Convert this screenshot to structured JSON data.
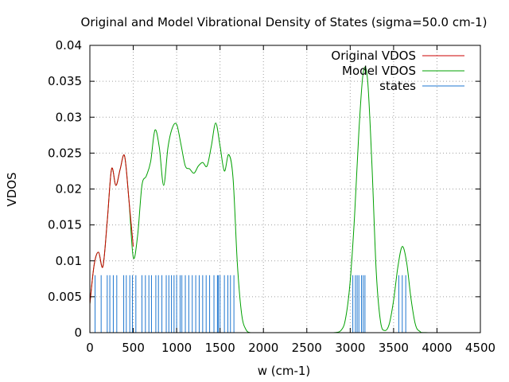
{
  "chart_data": {
    "type": "line",
    "title": "Original and Model Vibrational Density of States (sigma=50.0 cm-1)",
    "xlabel": "w (cm-1)",
    "ylabel": "VDOS",
    "xlim": [
      0,
      4500
    ],
    "ylim": [
      0,
      0.04
    ],
    "xticks": [
      "0",
      "500",
      "1000",
      "1500",
      "2000",
      "2500",
      "3000",
      "3500",
      "4000",
      "4500"
    ],
    "yticks": [
      "0",
      "0.005",
      "0.01",
      "0.015",
      "0.02",
      "0.025",
      "0.03",
      "0.035",
      "0.04"
    ],
    "grid": true,
    "legend_position": "top-right",
    "series": [
      {
        "name": "Original VDOS",
        "color": "#cc0000",
        "x": [
          0,
          50,
          100,
          150,
          200,
          250,
          300,
          350,
          400,
          450,
          500
        ],
        "y": [
          0.004,
          0.0095,
          0.0112,
          0.0092,
          0.0155,
          0.0228,
          0.0205,
          0.0228,
          0.0246,
          0.0185,
          0.012
        ]
      },
      {
        "name": "Model VDOS",
        "color": "#00a000",
        "x": [
          0,
          50,
          100,
          150,
          200,
          250,
          300,
          350,
          400,
          450,
          500,
          550,
          600,
          650,
          700,
          750,
          800,
          850,
          900,
          950,
          1000,
          1050,
          1100,
          1150,
          1200,
          1250,
          1300,
          1350,
          1400,
          1450,
          1500,
          1550,
          1600,
          1650,
          1700,
          1750,
          1800,
          1850,
          1900,
          2000,
          2500,
          2800,
          2900,
          2950,
          3000,
          3050,
          3100,
          3150,
          3200,
          3250,
          3300,
          3350,
          3400,
          3450,
          3500,
          3550,
          3600,
          3650,
          3700,
          3750,
          3800,
          3900,
          4500
        ],
        "y": [
          0.004,
          0.0095,
          0.0112,
          0.0092,
          0.0155,
          0.0228,
          0.0205,
          0.0228,
          0.0246,
          0.0185,
          0.0105,
          0.0135,
          0.0205,
          0.0218,
          0.0238,
          0.0282,
          0.0258,
          0.0205,
          0.0258,
          0.0285,
          0.029,
          0.0262,
          0.0232,
          0.0228,
          0.0222,
          0.0232,
          0.0237,
          0.0232,
          0.026,
          0.0292,
          0.026,
          0.0225,
          0.0248,
          0.0215,
          0.0095,
          0.0025,
          0.0004,
          0.0,
          0.0,
          0.0,
          0.0,
          0.0,
          0.0004,
          0.0022,
          0.0072,
          0.0162,
          0.028,
          0.0362,
          0.0352,
          0.0235,
          0.0085,
          0.0015,
          0.0003,
          0.0012,
          0.0045,
          0.0092,
          0.012,
          0.0098,
          0.0048,
          0.0012,
          0.0002,
          0.0,
          0.0
        ]
      },
      {
        "name": "states",
        "color": "#1f77d0",
        "impulse_height": 0.008,
        "x": [
          60,
          130,
          200,
          230,
          270,
          310,
          390,
          420,
          460,
          490,
          530,
          600,
          640,
          680,
          710,
          760,
          790,
          830,
          880,
          910,
          940,
          970,
          1000,
          1040,
          1060,
          1100,
          1140,
          1180,
          1220,
          1260,
          1300,
          1340,
          1380,
          1430,
          1470,
          1480,
          1500,
          1550,
          1590,
          1620,
          1660,
          3030,
          3060,
          3080,
          3100,
          3130,
          3150,
          3170,
          3560,
          3600,
          3640
        ]
      }
    ]
  }
}
